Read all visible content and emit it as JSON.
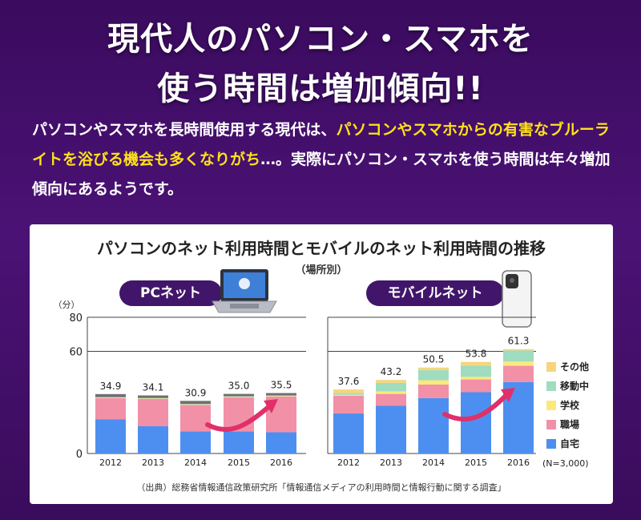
{
  "headline": {
    "line1": "現代人のパソコン・スマホを",
    "line2": "使う時間は増加傾向!!"
  },
  "lead": {
    "part1": "パソコンやスマホを長時間使用する現代は、",
    "highlight": "パソコンやスマホからの有害なブルーライトを浴びる機会も多くなりがち",
    "part2": "…。実際にパソコン・スマホを使う時間は年々増加傾向にあるようです。"
  },
  "chart_card": {
    "title": "パソコンのネット利用時間とモバイルのネット利用時間の推移",
    "subtitle": "（場所別）",
    "source": "（出典）総務省情報通信政策研究所「情報通信メディアの利用時間と情報行動に関する調査」",
    "sample": "(N=3,000)"
  },
  "colors": {
    "accent": "#ffe21a",
    "pill": "#41166a",
    "arrow": "#e0306a"
  },
  "chart_data": [
    {
      "type": "bar",
      "title": "PCネット",
      "ylabel": "（分）",
      "y_ticks": [
        "0",
        "60",
        "80"
      ],
      "ylim": [
        0,
        80
      ],
      "categories": [
        "2012",
        "2013",
        "2014",
        "2015",
        "2016"
      ],
      "totals": [
        "34.9",
        "34.1",
        "30.9",
        "35.0",
        "35.5"
      ],
      "series": [
        {
          "name": "自宅",
          "color": "#4d8ff0",
          "values": [
            20.0,
            16.0,
            13.0,
            13.0,
            12.5
          ]
        },
        {
          "name": "職場",
          "color": "#f290a8",
          "values": [
            12.5,
            16.0,
            15.5,
            20.0,
            21.0
          ]
        },
        {
          "name": "学校",
          "color": "#fbe97a",
          "values": [
            0.3,
            0.3,
            0.3,
            0.3,
            0.3
          ]
        },
        {
          "name": "移動中",
          "color": "#9fdcc0",
          "values": [
            0.3,
            0.3,
            0.3,
            0.3,
            0.3
          ]
        },
        {
          "name": "その他",
          "color": "#707070",
          "values": [
            1.8,
            1.5,
            1.8,
            1.4,
            1.4
          ]
        }
      ]
    },
    {
      "type": "bar",
      "title": "モバイルネット",
      "categories": [
        "2012",
        "2013",
        "2014",
        "2015",
        "2016"
      ],
      "totals": [
        "37.6",
        "43.2",
        "50.5",
        "53.8",
        "61.3"
      ],
      "series": [
        {
          "name": "自宅",
          "color": "#4d8ff0",
          "values": [
            23.5,
            28.0,
            32.5,
            36.0,
            42.0
          ]
        },
        {
          "name": "職場",
          "color": "#f290a8",
          "values": [
            10.5,
            7.0,
            8.0,
            7.5,
            9.5
          ]
        },
        {
          "name": "学校",
          "color": "#fbe97a",
          "values": [
            0.5,
            1.5,
            2.5,
            1.5,
            2.5
          ]
        },
        {
          "name": "移動中",
          "color": "#9fdcc0",
          "values": [
            1.0,
            5.0,
            6.0,
            6.5,
            6.5
          ]
        },
        {
          "name": "その他",
          "color": "#f6d57d",
          "values": [
            2.1,
            1.7,
            1.5,
            2.3,
            0.8
          ]
        }
      ]
    }
  ],
  "legend": [
    {
      "name": "その他",
      "color": "#f6d57d"
    },
    {
      "name": "移動中",
      "color": "#9fdcc0"
    },
    {
      "name": "学校",
      "color": "#fbe97a"
    },
    {
      "name": "職場",
      "color": "#f290a8"
    },
    {
      "name": "自宅",
      "color": "#4d8ff0"
    }
  ]
}
